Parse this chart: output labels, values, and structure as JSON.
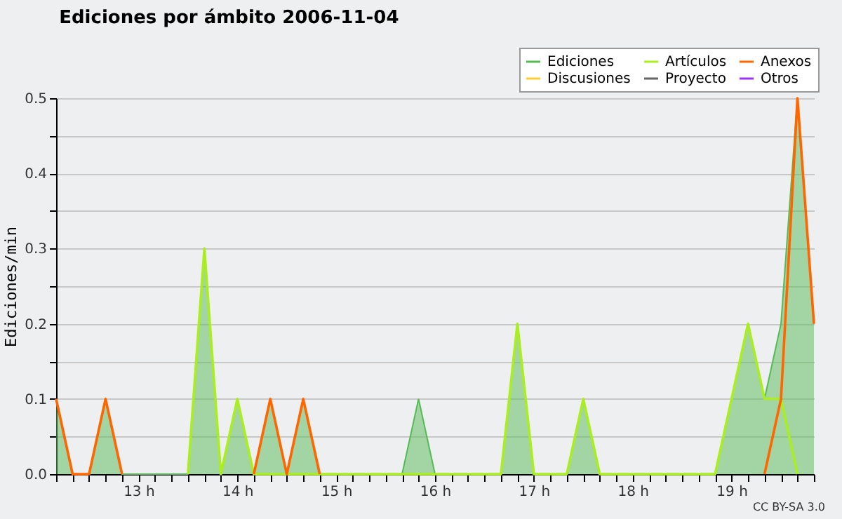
{
  "chart_data": {
    "type": "line",
    "title": "Ediciones por ámbito  2006-11-04",
    "ylabel": "Ediciones/min",
    "annotations": [
      "CC BY-SA 3.0"
    ],
    "x": [
      "2006-11-04T12:10",
      "2006-11-04T12:20",
      "2006-11-04T12:30",
      "2006-11-04T12:40",
      "2006-11-04T12:50",
      "2006-11-04T13:00",
      "2006-11-04T13:10",
      "2006-11-04T13:20",
      "2006-11-04T13:30",
      "2006-11-04T13:40",
      "2006-11-04T13:50",
      "2006-11-04T14:00",
      "2006-11-04T14:10",
      "2006-11-04T14:20",
      "2006-11-04T14:30",
      "2006-11-04T14:40",
      "2006-11-04T14:50",
      "2006-11-04T15:00",
      "2006-11-04T15:10",
      "2006-11-04T15:20",
      "2006-11-04T15:30",
      "2006-11-04T15:40",
      "2006-11-04T15:50",
      "2006-11-04T16:00",
      "2006-11-04T16:10",
      "2006-11-04T16:20",
      "2006-11-04T16:30",
      "2006-11-04T16:40",
      "2006-11-04T16:50",
      "2006-11-04T17:00",
      "2006-11-04T17:10",
      "2006-11-04T17:20",
      "2006-11-04T17:30",
      "2006-11-04T17:40",
      "2006-11-04T17:50",
      "2006-11-04T18:00",
      "2006-11-04T18:10",
      "2006-11-04T18:20",
      "2006-11-04T18:30",
      "2006-11-04T18:40",
      "2006-11-04T18:50",
      "2006-11-04T19:00",
      "2006-11-04T19:10",
      "2006-11-04T19:20",
      "2006-11-04T19:30",
      "2006-11-04T19:40",
      "2006-11-04T19:50"
    ],
    "series": [
      {
        "name": "Ediciones",
        "type": "area",
        "color": "#55bb55",
        "values": [
          0.1,
          0,
          0,
          0.1,
          0,
          0,
          0,
          0,
          0,
          0.3,
          0,
          0.1,
          0,
          0.1,
          0,
          0.1,
          0,
          0,
          0,
          0,
          0,
          0,
          0.1,
          0,
          0,
          0,
          0,
          0,
          0.2,
          0,
          0,
          0,
          0.1,
          0,
          0,
          0,
          0,
          0,
          0,
          0,
          0,
          0.1,
          0.2,
          0.1,
          0.2,
          0.5,
          0.2
        ]
      },
      {
        "name": "Discusiones",
        "color": "#ffcc33",
        "values": [
          null,
          null,
          null,
          null,
          null,
          null,
          null,
          null,
          null,
          null,
          null,
          null,
          null,
          null,
          null,
          null,
          null,
          null,
          null,
          null,
          null,
          null,
          null,
          null,
          null,
          null,
          null,
          null,
          null,
          null,
          null,
          null,
          null,
          null,
          null,
          null,
          null,
          null,
          null,
          null,
          null,
          null,
          null,
          null,
          null,
          null,
          null
        ]
      },
      {
        "name": "Artículos",
        "color": "#aaee22",
        "values": [
          null,
          null,
          null,
          null,
          null,
          null,
          null,
          null,
          0,
          0.3,
          0,
          0.1,
          0,
          0,
          0,
          0,
          0,
          0,
          0,
          0,
          0,
          0,
          0,
          0,
          0,
          0,
          0,
          0,
          0.2,
          0,
          0,
          0,
          0.1,
          0,
          0,
          0,
          0,
          0,
          0,
          0,
          0,
          0.1,
          0.2,
          0.1,
          0.1,
          0,
          null
        ]
      },
      {
        "name": "Proyecto",
        "color": "#666666",
        "values": [
          null,
          null,
          null,
          null,
          null,
          null,
          null,
          null,
          null,
          null,
          null,
          null,
          null,
          null,
          null,
          null,
          null,
          null,
          null,
          null,
          null,
          null,
          null,
          null,
          null,
          null,
          null,
          null,
          null,
          null,
          null,
          null,
          null,
          null,
          null,
          null,
          null,
          null,
          null,
          null,
          null,
          null,
          null,
          null,
          null,
          null,
          null
        ]
      },
      {
        "name": "Anexos",
        "color": "#ff6600",
        "values": [
          0.1,
          0,
          0,
          0.1,
          0,
          null,
          null,
          null,
          null,
          null,
          null,
          null,
          0,
          0.1,
          0,
          0.1,
          0,
          null,
          null,
          null,
          null,
          null,
          null,
          null,
          null,
          null,
          null,
          null,
          null,
          null,
          null,
          null,
          null,
          null,
          null,
          null,
          null,
          null,
          null,
          null,
          null,
          null,
          null,
          0,
          0.1,
          0.5,
          0.2
        ]
      },
      {
        "name": "Otros",
        "color": "#9933ff",
        "values": [
          null,
          null,
          null,
          null,
          null,
          null,
          null,
          null,
          null,
          null,
          null,
          null,
          null,
          null,
          null,
          null,
          null,
          null,
          null,
          null,
          null,
          null,
          null,
          null,
          null,
          null,
          null,
          null,
          null,
          null,
          null,
          null,
          null,
          null,
          null,
          null,
          null,
          null,
          null,
          null,
          null,
          null,
          null,
          null,
          null,
          null,
          null
        ]
      }
    ],
    "xlim": [
      "2006-11-04T12:10",
      "2006-11-04T19:50"
    ],
    "xticks": [
      {
        "value": "2006-11-04T12:10",
        "label": null
      },
      {
        "value": "2006-11-04T12:20",
        "label": null
      },
      {
        "value": "2006-11-04T12:30",
        "label": null
      },
      {
        "value": "2006-11-04T12:40",
        "label": null
      },
      {
        "value": "2006-11-04T12:50",
        "label": null
      },
      {
        "value": "2006-11-04T13:00",
        "label": "13 h"
      },
      {
        "value": "2006-11-04T13:10",
        "label": null
      },
      {
        "value": "2006-11-04T13:20",
        "label": null
      },
      {
        "value": "2006-11-04T13:30",
        "label": null
      },
      {
        "value": "2006-11-04T13:40",
        "label": null
      },
      {
        "value": "2006-11-04T13:50",
        "label": null
      },
      {
        "value": "2006-11-04T14:00",
        "label": "14 h"
      },
      {
        "value": "2006-11-04T14:10",
        "label": null
      },
      {
        "value": "2006-11-04T14:20",
        "label": null
      },
      {
        "value": "2006-11-04T14:30",
        "label": null
      },
      {
        "value": "2006-11-04T14:40",
        "label": null
      },
      {
        "value": "2006-11-04T14:50",
        "label": null
      },
      {
        "value": "2006-11-04T15:00",
        "label": "15 h"
      },
      {
        "value": "2006-11-04T15:10",
        "label": null
      },
      {
        "value": "2006-11-04T15:20",
        "label": null
      },
      {
        "value": "2006-11-04T15:30",
        "label": null
      },
      {
        "value": "2006-11-04T15:40",
        "label": null
      },
      {
        "value": "2006-11-04T15:50",
        "label": null
      },
      {
        "value": "2006-11-04T16:00",
        "label": "16 h"
      },
      {
        "value": "2006-11-04T16:10",
        "label": null
      },
      {
        "value": "2006-11-04T16:20",
        "label": null
      },
      {
        "value": "2006-11-04T16:30",
        "label": null
      },
      {
        "value": "2006-11-04T16:40",
        "label": null
      },
      {
        "value": "2006-11-04T16:50",
        "label": null
      },
      {
        "value": "2006-11-04T17:00",
        "label": "17 h"
      },
      {
        "value": "2006-11-04T17:10",
        "label": null
      },
      {
        "value": "2006-11-04T17:20",
        "label": null
      },
      {
        "value": "2006-11-04T17:30",
        "label": null
      },
      {
        "value": "2006-11-04T17:40",
        "label": null
      },
      {
        "value": "2006-11-04T17:50",
        "label": null
      },
      {
        "value": "2006-11-04T18:00",
        "label": "18 h"
      },
      {
        "value": "2006-11-04T18:10",
        "label": null
      },
      {
        "value": "2006-11-04T18:20",
        "label": null
      },
      {
        "value": "2006-11-04T18:30",
        "label": null
      },
      {
        "value": "2006-11-04T18:40",
        "label": null
      },
      {
        "value": "2006-11-04T18:50",
        "label": null
      },
      {
        "value": "2006-11-04T19:00",
        "label": "19 h"
      },
      {
        "value": "2006-11-04T19:10",
        "label": null
      },
      {
        "value": "2006-11-04T19:20",
        "label": null
      },
      {
        "value": "2006-11-04T19:30",
        "label": null
      },
      {
        "value": "2006-11-04T19:40",
        "label": null
      },
      {
        "value": "2006-11-04T19:50",
        "label": null
      }
    ],
    "ylim": [
      0,
      0.5
    ],
    "yticks": [
      {
        "value": 0,
        "label": "0.0"
      },
      {
        "value": 0.05,
        "label": null
      },
      {
        "value": 0.1,
        "label": "0.1"
      },
      {
        "value": 0.15,
        "label": null
      },
      {
        "value": 0.2,
        "label": "0.2"
      },
      {
        "value": 0.25,
        "label": null
      },
      {
        "value": 0.3,
        "label": "0.3"
      },
      {
        "value": 0.35,
        "label": null
      },
      {
        "value": 0.4,
        "label": "0.4"
      },
      {
        "value": 0.45,
        "label": null
      },
      {
        "value": 0.5,
        "label": "0.5"
      }
    ],
    "grid": "y",
    "legend": "top right"
  }
}
